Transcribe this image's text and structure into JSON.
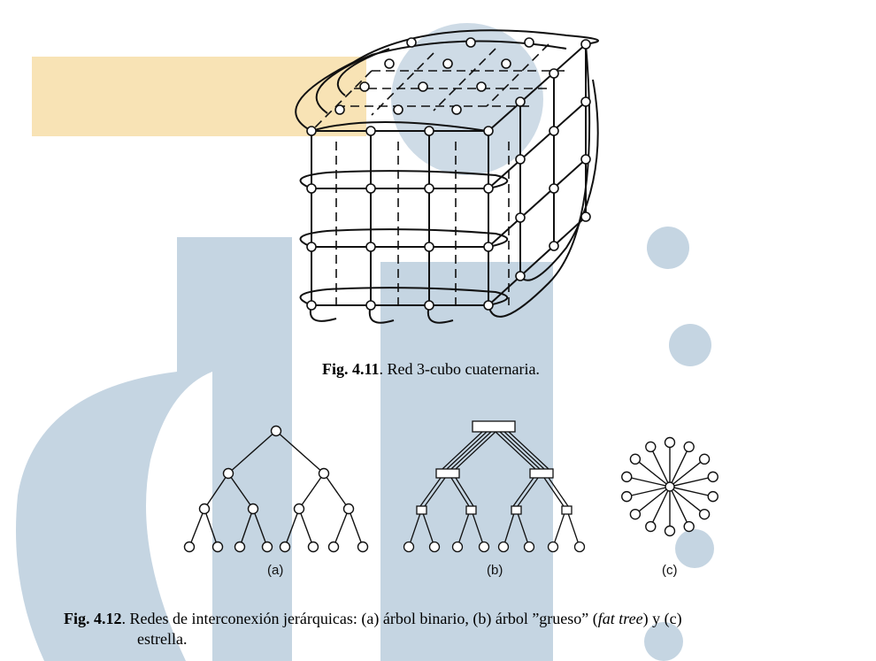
{
  "fig411": {
    "label": "Fig. 4.11",
    "text": ". Red 3-cubo cuaternaria."
  },
  "fig412": {
    "label": "Fig. 4.12",
    "text": ". Redes de interconexión jerárquicas: (a) árbol binario, (b) árbol ”grueso” (",
    "italic": "fat tree",
    "text_after": ") y (c)",
    "line2": "estrella.",
    "sub_a": "(a)",
    "sub_b": "(b)",
    "sub_c": "(c)"
  },
  "watermark_colors": {
    "blue": "#c5d5e2",
    "orange": "#f8e3b5"
  }
}
